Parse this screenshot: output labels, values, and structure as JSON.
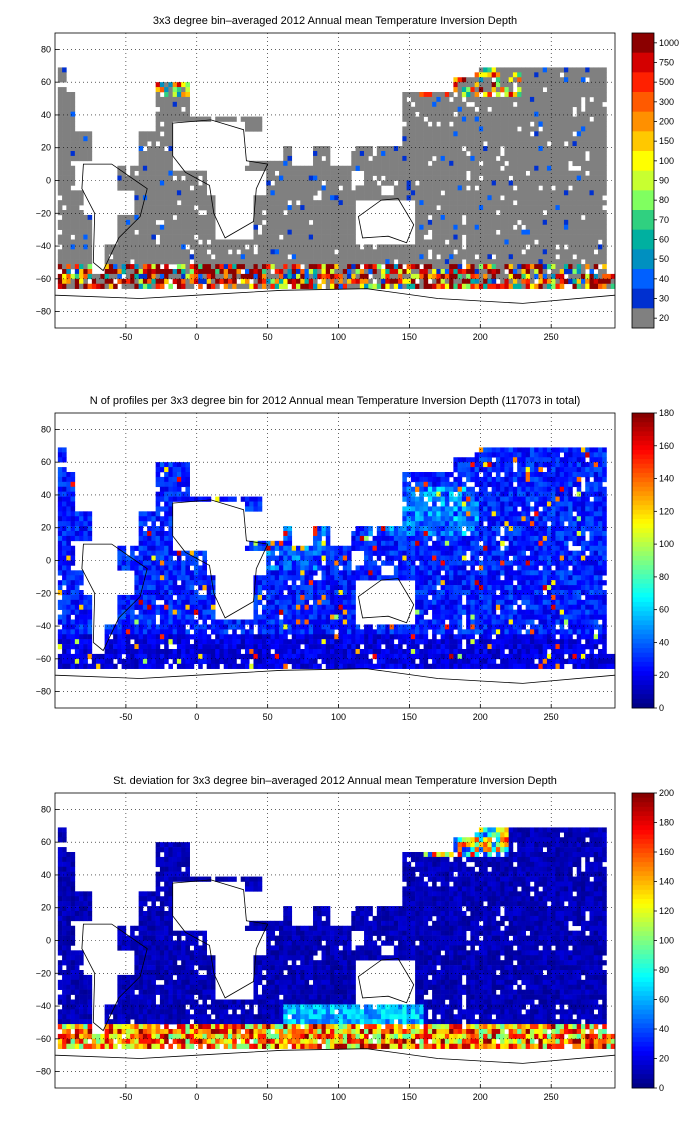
{
  "chart_data": [
    {
      "type": "heatmap",
      "title": "3x3 degree bin–averaged 2012 Annual mean Temperature Inversion Depth",
      "x_ticks": [
        "-50",
        "0",
        "50",
        "100",
        "150",
        "200",
        "250"
      ],
      "y_ticks": [
        "80",
        "60",
        "40",
        "20",
        "0",
        "−20",
        "−40",
        "−60",
        "−80"
      ],
      "xlim": [
        -100,
        295
      ],
      "ylim": [
        -90,
        90
      ],
      "grid": "dotted",
      "colorbar_ticks": [
        "1000",
        "750",
        "500",
        "300",
        "200",
        "150",
        "100",
        "90",
        "80",
        "70",
        "60",
        "50",
        "40",
        "30",
        "20"
      ],
      "colorbar_colors": [
        "#8b0000",
        "#d40000",
        "#ff2000",
        "#ff5a00",
        "#ff9000",
        "#ffc800",
        "#ffff00",
        "#c8ff30",
        "#80ff60",
        "#30d080",
        "#00b0a0",
        "#0090c0",
        "#0060ff",
        "#0030d0",
        "#808080"
      ],
      "colorbar_scale": "categorical"
    },
    {
      "type": "heatmap",
      "title": "N of profiles per 3x3 degree bin for 2012 Annual mean Temperature Inversion Depth  (117073 in total)",
      "x_ticks": [
        "-50",
        "0",
        "50",
        "100",
        "150",
        "200",
        "250"
      ],
      "y_ticks": [
        "80",
        "60",
        "40",
        "20",
        "0",
        "−20",
        "−40",
        "−60",
        "−80"
      ],
      "xlim": [
        -100,
        295
      ],
      "ylim": [
        -90,
        90
      ],
      "grid": "dotted",
      "colorbar_ticks": [
        "180",
        "160",
        "140",
        "120",
        "100",
        "80",
        "60",
        "40",
        "20",
        "0"
      ],
      "colorbar_range": [
        0,
        180
      ],
      "colorbar_scale": "jet"
    },
    {
      "type": "heatmap",
      "title": "St. deviation for 3x3 degree bin–averaged 2012 Annual mean Temperature Inversion Depth",
      "x_ticks": [
        "-50",
        "0",
        "50",
        "100",
        "150",
        "200",
        "250"
      ],
      "y_ticks": [
        "80",
        "60",
        "40",
        "20",
        "0",
        "−20",
        "−40",
        "−60",
        "−80"
      ],
      "xlim": [
        -100,
        295
      ],
      "ylim": [
        -90,
        90
      ],
      "grid": "dotted",
      "colorbar_ticks": [
        "200",
        "180",
        "160",
        "140",
        "120",
        "100",
        "80",
        "60",
        "40",
        "20",
        "0"
      ],
      "colorbar_range": [
        0,
        200
      ],
      "colorbar_scale": "jet"
    }
  ]
}
